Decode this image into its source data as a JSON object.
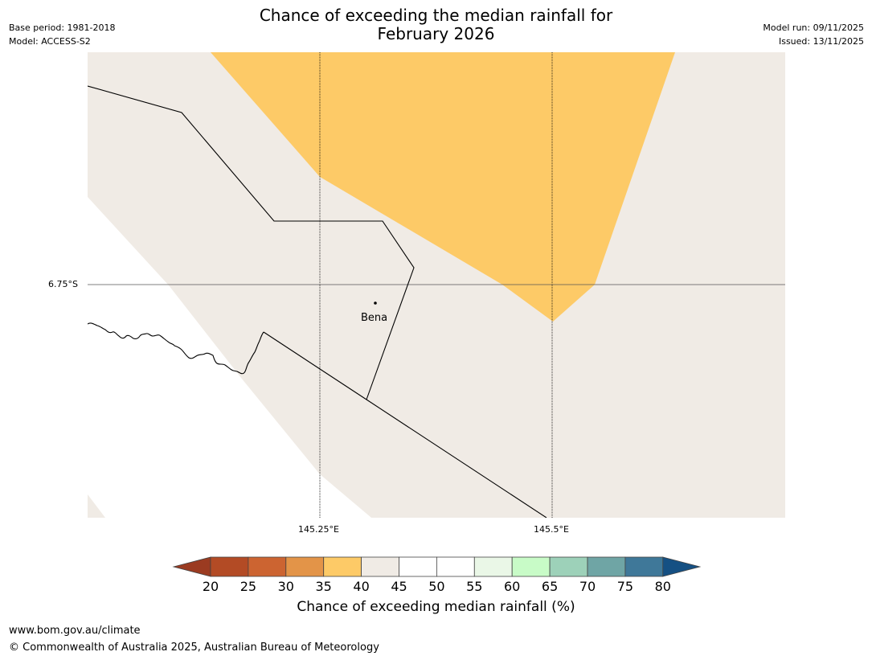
{
  "header": {
    "title_line1": "Chance of exceeding the median rainfall for",
    "title_line2": "February 2026",
    "base_period": "Base period: 1981-2018",
    "model": "Model: ACCESS-S2",
    "model_run": "Model run: 09/11/2025",
    "issued": "Issued: 13/11/2025"
  },
  "map": {
    "lat_label": "6.75°S",
    "lon_labels": [
      "145.25°E",
      "145.5°E"
    ],
    "place_label": "Bena",
    "colors": {
      "ocean": "#ffffff",
      "land_neutral": "#f0ebe5",
      "band_35_40": "#fdca67",
      "border": "#000000",
      "grid": "#555555"
    }
  },
  "colorbar": {
    "ticks": [
      "20",
      "25",
      "30",
      "35",
      "40",
      "45",
      "50",
      "55",
      "60",
      "65",
      "70",
      "75",
      "80"
    ],
    "colors": [
      "#9b3b21",
      "#b34b25",
      "#cc6431",
      "#e39448",
      "#fdca67",
      "#f0ebe5",
      "#ffffff",
      "#ffffff",
      "#eaf7e7",
      "#c8fbc7",
      "#9dd1b9",
      "#6fa5a5",
      "#3f7899",
      "#155083"
    ],
    "label": "Chance of exceeding median rainfall (%)"
  },
  "footer": {
    "url": "www.bom.gov.au/climate",
    "copyright": "© Commonwealth of Australia 2025, Australian Bureau of Meteorology"
  }
}
